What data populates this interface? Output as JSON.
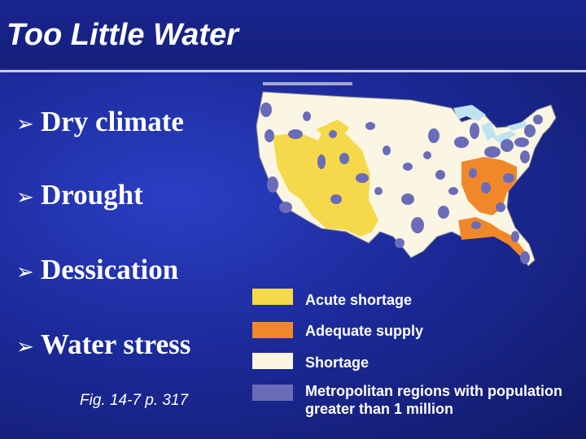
{
  "slide": {
    "title": "Too Little Water",
    "bullets": [
      {
        "icon": "arrow-bullet-icon",
        "text": "Dry climate"
      },
      {
        "icon": "arrow-bullet-icon",
        "text": "Drought"
      },
      {
        "icon": "arrow-bullet-icon",
        "text": "Dessication"
      },
      {
        "icon": "arrow-bullet-icon",
        "text": "Water stress"
      }
    ],
    "figure_reference": "Fig. 14-7 p. 317"
  },
  "legend": [
    {
      "label": "Acute shortage",
      "color": "#f5d94a"
    },
    {
      "label": "Adequate supply",
      "color": "#f0882a"
    },
    {
      "label": "Shortage",
      "color": "#fbf6e4"
    },
    {
      "label": "Metropolitan regions with population greater than 1 million",
      "color": "#6a6cb8"
    }
  ],
  "colors": {
    "background": "#1c2a9a",
    "title_bar": "#14207a",
    "title_rule": "#c9cbe0",
    "water": "#bfe3f0"
  }
}
